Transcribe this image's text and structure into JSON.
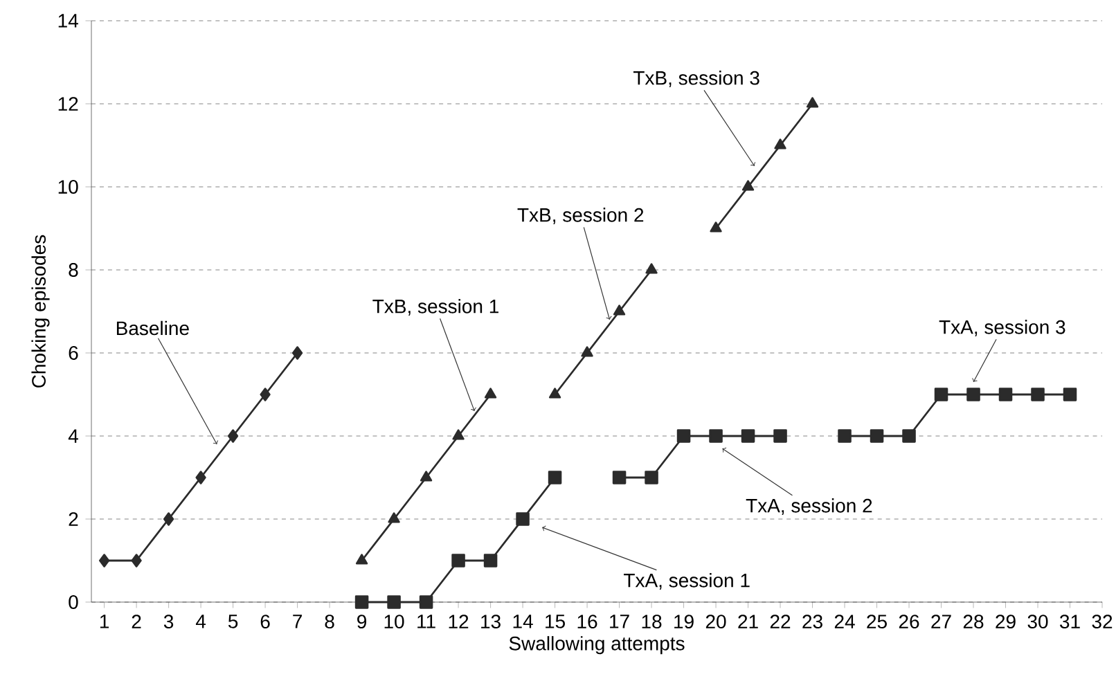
{
  "chart_data": {
    "type": "line",
    "xlabel": "Swallowing attempts",
    "ylabel": "Choking episodes",
    "xlim": [
      0.6,
      32
    ],
    "xticks": [
      1,
      2,
      3,
      4,
      5,
      6,
      7,
      8,
      9,
      10,
      11,
      12,
      13,
      14,
      15,
      16,
      17,
      18,
      19,
      20,
      21,
      22,
      23,
      24,
      25,
      26,
      27,
      28,
      29,
      30,
      31,
      32
    ],
    "ylim": [
      0,
      14
    ],
    "yticks": [
      0,
      2,
      4,
      6,
      8,
      10,
      12,
      14
    ],
    "grid": "y",
    "line_style": "solid",
    "series": [
      {
        "color": "#2b2b2b",
        "marker": "diamond",
        "x": [
          1,
          2,
          3,
          4,
          5,
          6,
          7
        ],
        "values": [
          1,
          1,
          2,
          3,
          4,
          5,
          6
        ]
      },
      {
        "color": "#2b2b2b",
        "marker": "triangle",
        "x": [
          9,
          10,
          11,
          12,
          13
        ],
        "values": [
          1,
          2,
          3,
          4,
          5
        ]
      },
      {
        "color": "#2b2b2b",
        "marker": "triangle",
        "x": [
          15,
          16,
          17,
          18
        ],
        "values": [
          5,
          6,
          7,
          8
        ]
      },
      {
        "color": "#2b2b2b",
        "marker": "triangle",
        "x": [
          20,
          21,
          22,
          23
        ],
        "values": [
          9,
          10,
          11,
          12
        ]
      },
      {
        "color": "#2b2b2b",
        "marker": "square",
        "x": [
          9,
          10,
          11,
          12,
          13,
          14,
          15
        ],
        "values": [
          0,
          0,
          0,
          1,
          1,
          2,
          3
        ]
      },
      {
        "color": "#2b2b2b",
        "marker": "square",
        "x": [
          17,
          18,
          19,
          20,
          21,
          22
        ],
        "values": [
          3,
          3,
          4,
          4,
          4,
          4
        ]
      },
      {
        "color": "#2b2b2b",
        "marker": "square",
        "x": [
          24,
          25,
          26,
          27,
          28,
          29,
          30,
          31
        ],
        "values": [
          4,
          4,
          4,
          5,
          5,
          5,
          5,
          5
        ]
      }
    ],
    "annotations": [
      {
        "text": "Baseline",
        "x": 4.5,
        "y": 3.8
      },
      {
        "text": "TxB, session 1",
        "x": 12.5,
        "y": 4.6
      },
      {
        "text": "TxB, session 2",
        "x": 16.7,
        "y": 6.8
      },
      {
        "text": "TxB, session 3",
        "x": 21.2,
        "y": 10.5
      },
      {
        "text": "TxA, session 1",
        "x": 14.6,
        "y": 1.8
      },
      {
        "text": "TxA, session 2",
        "x": 20.2,
        "y": 3.7
      },
      {
        "text": "TxA, session 3",
        "x": 28,
        "y": 5.3
      }
    ]
  }
}
